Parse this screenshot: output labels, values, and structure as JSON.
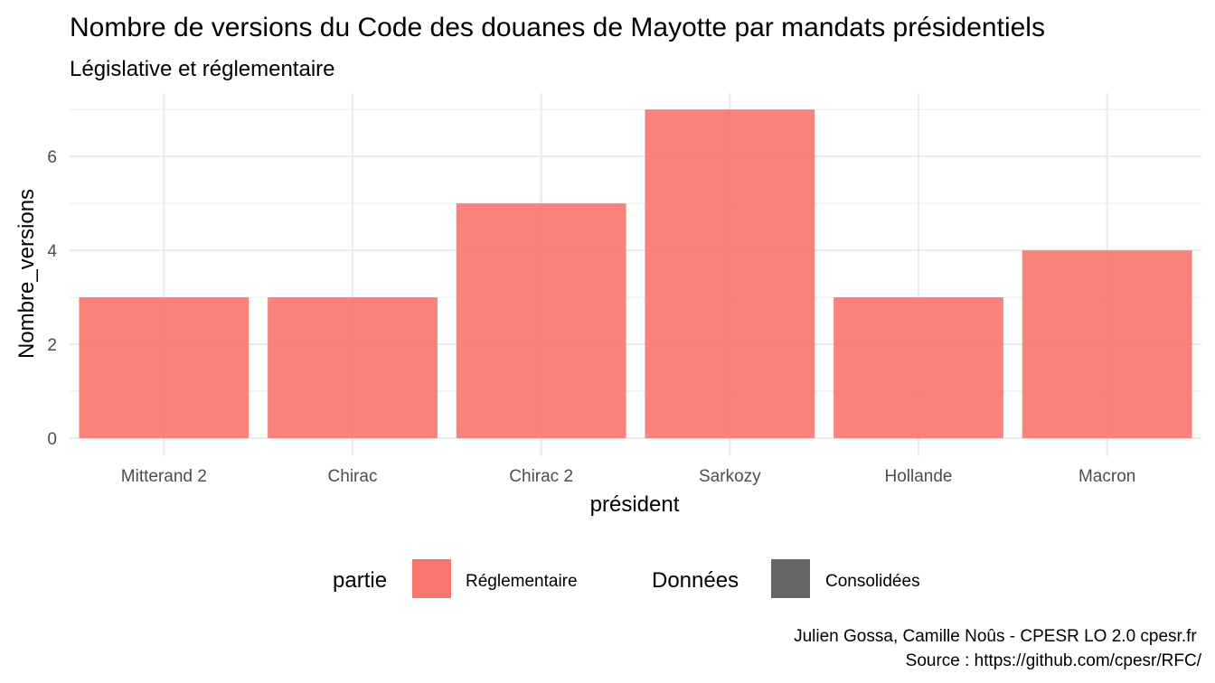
{
  "chart_data": {
    "type": "bar",
    "title": "Nombre de versions du Code des douanes de Mayotte par mandats présidentiels",
    "subtitle": "Législative et réglementaire",
    "xlabel": "président",
    "ylabel": "Nombre_versions",
    "categories": [
      "Mitterand 2",
      "Chirac",
      "Chirac 2",
      "Sarkozy",
      "Hollande",
      "Macron"
    ],
    "series": [
      {
        "name": "Réglementaire",
        "values": [
          3,
          3,
          5,
          7,
          3,
          4
        ],
        "color": "#F8766D"
      }
    ],
    "ylim": [
      0,
      7.35
    ],
    "yticks": [
      0,
      2,
      4,
      6
    ],
    "grid": true,
    "legend": {
      "position": "bottom",
      "groups": [
        {
          "title": "partie",
          "items": [
            {
              "label": "Réglementaire",
              "color": "#F8766D"
            }
          ]
        },
        {
          "title": "Données",
          "items": [
            {
              "label": "Consolidées",
              "color": "#666666"
            }
          ]
        }
      ]
    },
    "caption": [
      "Julien Gossa, Camille Noûs - CPESR LO 2.0 cpesr.fr ",
      "Source : https://github.com/cpesr/RFC/"
    ]
  }
}
